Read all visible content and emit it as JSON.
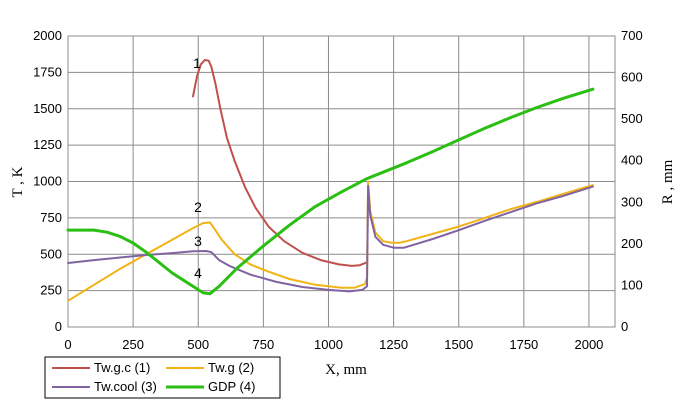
{
  "chart_data": {
    "type": "line",
    "title": "",
    "xlabel": "X, mm",
    "ylabel": "T , K",
    "y2label": "R , mm",
    "xlim": [
      0,
      2100
    ],
    "ylim": [
      0,
      2000
    ],
    "y2lim": [
      0,
      700
    ],
    "x_ticks": [
      "0",
      "250",
      "500",
      "750",
      "1000",
      "1250",
      "1500",
      "1750",
      "2000"
    ],
    "y_ticks": [
      "0",
      "250",
      "500",
      "750",
      "1000",
      "1250",
      "1500",
      "1750",
      "2000"
    ],
    "y2_ticks": [
      "0",
      "100",
      "200",
      "300",
      "400",
      "500",
      "600",
      "700"
    ],
    "legend_position": "bottom-left",
    "series": [
      {
        "name": "Tw.g.c (1)",
        "curve_label": "1",
        "axis": "left",
        "color": "#c0504d",
        "points": [
          [
            480,
            1585
          ],
          [
            495,
            1720
          ],
          [
            510,
            1805
          ],
          [
            525,
            1835
          ],
          [
            540,
            1830
          ],
          [
            550,
            1790
          ],
          [
            565,
            1680
          ],
          [
            585,
            1500
          ],
          [
            610,
            1300
          ],
          [
            640,
            1140
          ],
          [
            680,
            960
          ],
          [
            720,
            820
          ],
          [
            770,
            690
          ],
          [
            830,
            590
          ],
          [
            900,
            510
          ],
          [
            970,
            460
          ],
          [
            1040,
            430
          ],
          [
            1090,
            420
          ],
          [
            1120,
            425
          ],
          [
            1148,
            445
          ]
        ]
      },
      {
        "name": "Tw.g (2)",
        "curve_label": "2",
        "axis": "left",
        "color": "#f2b315",
        "points": [
          [
            0,
            180
          ],
          [
            100,
            290
          ],
          [
            200,
            400
          ],
          [
            300,
            500
          ],
          [
            400,
            600
          ],
          [
            480,
            680
          ],
          [
            520,
            715
          ],
          [
            545,
            718
          ],
          [
            560,
            680
          ],
          [
            590,
            600
          ],
          [
            640,
            500
          ],
          [
            700,
            430
          ],
          [
            770,
            380
          ],
          [
            850,
            330
          ],
          [
            950,
            290
          ],
          [
            1050,
            270
          ],
          [
            1100,
            270
          ],
          [
            1140,
            295
          ],
          [
            1148,
            340
          ],
          [
            1152,
            1000
          ],
          [
            1160,
            800
          ],
          [
            1180,
            650
          ],
          [
            1210,
            590
          ],
          [
            1240,
            580
          ],
          [
            1270,
            578
          ],
          [
            1300,
            590
          ],
          [
            1400,
            640
          ],
          [
            1500,
            690
          ],
          [
            1600,
            750
          ],
          [
            1700,
            810
          ],
          [
            1800,
            860
          ],
          [
            1900,
            915
          ],
          [
            2015,
            975
          ]
        ]
      },
      {
        "name": "Tw.cool (3)",
        "curve_label": "3",
        "axis": "left",
        "color": "#8064a2",
        "points": [
          [
            0,
            440
          ],
          [
            100,
            460
          ],
          [
            200,
            478
          ],
          [
            300,
            495
          ],
          [
            400,
            508
          ],
          [
            480,
            520
          ],
          [
            530,
            522
          ],
          [
            550,
            515
          ],
          [
            580,
            460
          ],
          [
            620,
            420
          ],
          [
            700,
            360
          ],
          [
            800,
            310
          ],
          [
            900,
            275
          ],
          [
            1000,
            255
          ],
          [
            1080,
            245
          ],
          [
            1130,
            255
          ],
          [
            1148,
            280
          ],
          [
            1152,
            970
          ],
          [
            1160,
            770
          ],
          [
            1180,
            620
          ],
          [
            1210,
            565
          ],
          [
            1250,
            545
          ],
          [
            1290,
            545
          ],
          [
            1400,
            605
          ],
          [
            1500,
            665
          ],
          [
            1600,
            730
          ],
          [
            1700,
            790
          ],
          [
            1800,
            850
          ],
          [
            1900,
            900
          ],
          [
            2015,
            965
          ]
        ]
      },
      {
        "name": "GDP (4)",
        "curve_label": "4",
        "axis": "right",
        "color": "#2bbf14",
        "points": [
          [
            0,
            233
          ],
          [
            100,
            233
          ],
          [
            150,
            228
          ],
          [
            200,
            218
          ],
          [
            250,
            202
          ],
          [
            300,
            180
          ],
          [
            350,
            155
          ],
          [
            400,
            130
          ],
          [
            450,
            110
          ],
          [
            500,
            90
          ],
          [
            520,
            82
          ],
          [
            545,
            80
          ],
          [
            580,
            98
          ],
          [
            650,
            142
          ],
          [
            750,
            195
          ],
          [
            850,
            245
          ],
          [
            950,
            290
          ],
          [
            1050,
            325
          ],
          [
            1148,
            357
          ],
          [
            1200,
            370
          ],
          [
            1300,
            395
          ],
          [
            1400,
            422
          ],
          [
            1500,
            450
          ],
          [
            1600,
            478
          ],
          [
            1700,
            504
          ],
          [
            1800,
            528
          ],
          [
            1900,
            550
          ],
          [
            2015,
            572
          ]
        ]
      }
    ]
  }
}
